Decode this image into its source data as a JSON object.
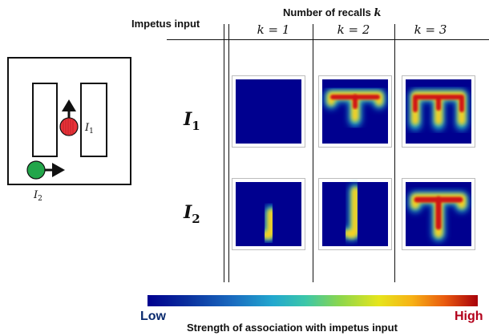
{
  "header": {
    "impetus_input": "Impetus input",
    "number_of_recalls_prefix": "Number of recalls ",
    "number_of_recalls_var": "k"
  },
  "columns": [
    {
      "label": "k = 1"
    },
    {
      "label": "k = 2"
    },
    {
      "label": "k = 3"
    }
  ],
  "rows": [
    {
      "label": "I",
      "sub": "1"
    },
    {
      "label": "I",
      "sub": "2"
    }
  ],
  "maze": {
    "label_i1": "I",
    "label_i1_sub": "1",
    "label_i2": "I",
    "label_i2_sub": "2"
  },
  "colorbar": {
    "low": "Low",
    "high": "High",
    "title": "Strength of association with impetus input"
  },
  "colors": {
    "background": "#00008f",
    "agent_red": "#e8343a",
    "agent_green": "#22a64a",
    "heat_core": "#cc0a0a",
    "heat_mid": "#ffd000"
  }
}
